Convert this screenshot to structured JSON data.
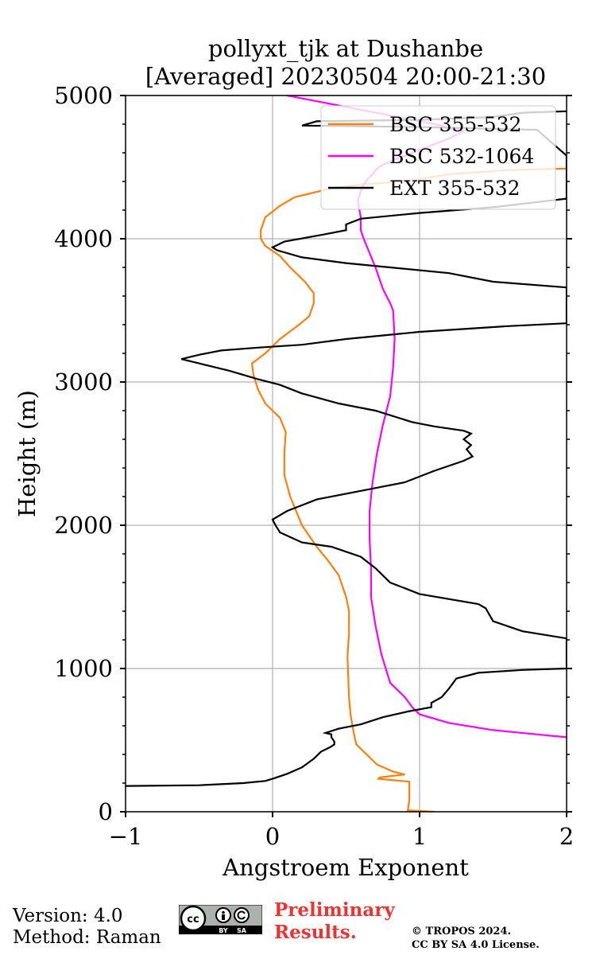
{
  "chart_data": {
    "type": "line",
    "title_line1": "pollyxt_tjk at Dushanbe",
    "title_line2": "[Averaged] 20230504 20:00-21:30",
    "xlabel": "Angstroem Exponent",
    "ylabel": "Height (m)",
    "xlim": [
      -1,
      2
    ],
    "ylim": [
      0,
      5000
    ],
    "xticks": [
      -1,
      0,
      1,
      2
    ],
    "xtick_labels": [
      "−1",
      "0",
      "1",
      "2"
    ],
    "yticks": [
      0,
      1000,
      2000,
      3000,
      4000,
      5000
    ],
    "ytick_labels": [
      "0",
      "1000",
      "2000",
      "3000",
      "4000",
      "5000"
    ],
    "grid": true,
    "legend_position": "top-right",
    "series": [
      {
        "name": "BSC 355-532",
        "color": "#ff7f0e",
        "points": [
          [
            1.1,
            0
          ],
          [
            0.92,
            10
          ],
          [
            0.93,
            80
          ],
          [
            0.93,
            150
          ],
          [
            0.93,
            210
          ],
          [
            0.72,
            230
          ],
          [
            0.73,
            240
          ],
          [
            0.9,
            260
          ],
          [
            0.82,
            280
          ],
          [
            0.71,
            330
          ],
          [
            0.62,
            420
          ],
          [
            0.57,
            470
          ],
          [
            0.55,
            560
          ],
          [
            0.53,
            680
          ],
          [
            0.52,
            800
          ],
          [
            0.51,
            1080
          ],
          [
            0.52,
            1250
          ],
          [
            0.52,
            1400
          ],
          [
            0.5,
            1500
          ],
          [
            0.45,
            1650
          ],
          [
            0.38,
            1750
          ],
          [
            0.3,
            1850
          ],
          [
            0.2,
            2000
          ],
          [
            0.12,
            2200
          ],
          [
            0.08,
            2350
          ],
          [
            0.08,
            2500
          ],
          [
            0.09,
            2650
          ],
          [
            0.05,
            2750
          ],
          [
            -0.05,
            2850
          ],
          [
            -0.1,
            2950
          ],
          [
            -0.13,
            3050
          ],
          [
            -0.14,
            3130
          ],
          [
            -0.05,
            3200
          ],
          [
            0.05,
            3300
          ],
          [
            0.18,
            3400
          ],
          [
            0.25,
            3460
          ],
          [
            0.28,
            3550
          ],
          [
            0.28,
            3620
          ],
          [
            0.22,
            3700
          ],
          [
            0.12,
            3800
          ],
          [
            0.05,
            3880
          ],
          [
            -0.05,
            3950
          ],
          [
            -0.08,
            4000
          ],
          [
            -0.08,
            4060
          ],
          [
            -0.05,
            4150
          ],
          [
            0.05,
            4230
          ],
          [
            0.15,
            4290
          ],
          [
            0.35,
            4340
          ],
          [
            0.6,
            4380
          ],
          [
            0.9,
            4400
          ],
          [
            1.2,
            4450
          ],
          [
            1.6,
            4480
          ],
          [
            2.0,
            4490
          ]
        ]
      },
      {
        "name": "BSC 532-1064",
        "color": "#ff00ff",
        "points": [
          [
            2.0,
            520
          ],
          [
            1.8,
            540
          ],
          [
            1.5,
            570
          ],
          [
            1.2,
            620
          ],
          [
            1.0,
            680
          ],
          [
            0.95,
            730
          ],
          [
            0.9,
            800
          ],
          [
            0.8,
            900
          ],
          [
            0.74,
            1100
          ],
          [
            0.7,
            1300
          ],
          [
            0.67,
            1500
          ],
          [
            0.67,
            1700
          ],
          [
            0.66,
            1900
          ],
          [
            0.66,
            2100
          ],
          [
            0.68,
            2300
          ],
          [
            0.71,
            2500
          ],
          [
            0.75,
            2700
          ],
          [
            0.8,
            2900
          ],
          [
            0.82,
            3100
          ],
          [
            0.83,
            3300
          ],
          [
            0.82,
            3500
          ],
          [
            0.8,
            3550
          ],
          [
            0.75,
            3650
          ],
          [
            0.7,
            3800
          ],
          [
            0.66,
            3900
          ],
          [
            0.62,
            4000
          ],
          [
            0.6,
            4060
          ],
          [
            0.6,
            4150
          ],
          [
            0.58,
            4260
          ],
          [
            0.6,
            4330
          ],
          [
            0.62,
            4380
          ],
          [
            0.65,
            4420
          ],
          [
            0.68,
            4450
          ],
          [
            0.72,
            4500
          ],
          [
            0.78,
            4530
          ],
          [
            0.85,
            4560
          ],
          [
            0.95,
            4600
          ],
          [
            1.05,
            4640
          ],
          [
            1.2,
            4700
          ],
          [
            1.3,
            4750
          ],
          [
            1.1,
            4800
          ],
          [
            0.7,
            4880
          ],
          [
            0.45,
            4930
          ],
          [
            0.25,
            4970
          ],
          [
            0.1,
            5000
          ]
        ]
      },
      {
        "name": "EXT 355-532",
        "color": "#000000",
        "points": [
          [
            -1.0,
            180
          ],
          [
            -0.5,
            185
          ],
          [
            -0.2,
            200
          ],
          [
            -0.05,
            215
          ],
          [
            0.0,
            230
          ],
          [
            0.1,
            265
          ],
          [
            0.2,
            310
          ],
          [
            0.28,
            370
          ],
          [
            0.33,
            420
          ],
          [
            0.39,
            450
          ],
          [
            0.42,
            470
          ],
          [
            0.42,
            490
          ],
          [
            0.4,
            520
          ],
          [
            0.4,
            540
          ],
          [
            0.36,
            550
          ],
          [
            0.45,
            580
          ],
          [
            0.6,
            610
          ],
          [
            0.75,
            660
          ],
          [
            0.92,
            700
          ],
          [
            1.08,
            730
          ],
          [
            1.08,
            760
          ],
          [
            1.15,
            800
          ],
          [
            1.2,
            860
          ],
          [
            1.25,
            930
          ],
          [
            1.4,
            970
          ],
          [
            1.7,
            990
          ],
          [
            2.0,
            1000
          ],
          [
            2.0,
            1210
          ],
          [
            1.7,
            1260
          ],
          [
            1.5,
            1330
          ],
          [
            1.45,
            1420
          ],
          [
            1.4,
            1450
          ],
          [
            1.0,
            1520
          ],
          [
            0.8,
            1600
          ],
          [
            0.7,
            1700
          ],
          [
            0.6,
            1780
          ],
          [
            0.4,
            1850
          ],
          [
            0.2,
            1880
          ],
          [
            0.05,
            1950
          ],
          [
            0.02,
            2000
          ],
          [
            0.0,
            2040
          ],
          [
            0.1,
            2100
          ],
          [
            0.3,
            2180
          ],
          [
            0.6,
            2240
          ],
          [
            0.9,
            2300
          ],
          [
            1.1,
            2380
          ],
          [
            1.3,
            2450
          ],
          [
            1.36,
            2480
          ],
          [
            1.32,
            2530
          ],
          [
            1.35,
            2560
          ],
          [
            1.3,
            2600
          ],
          [
            1.35,
            2640
          ],
          [
            1.3,
            2660
          ],
          [
            1.1,
            2690
          ],
          [
            0.95,
            2720
          ],
          [
            0.7,
            2800
          ],
          [
            0.45,
            2850
          ],
          [
            0.2,
            2920
          ],
          [
            0.05,
            2980
          ],
          [
            -0.1,
            3020
          ],
          [
            -0.3,
            3080
          ],
          [
            -0.5,
            3130
          ],
          [
            -0.62,
            3160
          ],
          [
            -0.5,
            3190
          ],
          [
            -0.35,
            3220
          ],
          [
            -0.1,
            3240
          ],
          [
            0.2,
            3260
          ],
          [
            0.5,
            3300
          ],
          [
            1.0,
            3350
          ],
          [
            1.6,
            3390
          ],
          [
            2.0,
            3410
          ],
          [
            2.0,
            3660
          ],
          [
            1.5,
            3700
          ],
          [
            1.2,
            3760
          ],
          [
            0.8,
            3800
          ],
          [
            0.5,
            3830
          ],
          [
            0.2,
            3870
          ],
          [
            0.03,
            3920
          ],
          [
            0.0,
            3940
          ],
          [
            0.08,
            3980
          ],
          [
            0.35,
            4030
          ],
          [
            0.5,
            4060
          ],
          [
            0.5,
            4100
          ],
          [
            0.6,
            4140
          ],
          [
            1.0,
            4180
          ],
          [
            1.5,
            4220
          ],
          [
            2.0,
            4280
          ],
          [
            2.0,
            4480
          ],
          [
            2.0,
            4520
          ],
          [
            2.0,
            4550
          ],
          [
            2.0,
            4580
          ],
          [
            1.8,
            4760
          ],
          [
            1.0,
            4780
          ],
          [
            0.2,
            4790
          ],
          [
            0.3,
            4820
          ],
          [
            1.0,
            4830
          ],
          [
            1.5,
            4850
          ],
          [
            1.7,
            4880
          ],
          [
            2.0,
            4890
          ]
        ]
      }
    ]
  },
  "footer": {
    "version": "Version: 4.0",
    "method": "Method: Raman",
    "preliminary_line1": "Preliminary",
    "preliminary_line2": "Results.",
    "copyright_line1": "© TROPOS 2024.",
    "copyright_line2": "CC BY SA 4.0 License.",
    "badge_cc": "cc",
    "badge_by": "BY",
    "badge_sa": "SA"
  }
}
